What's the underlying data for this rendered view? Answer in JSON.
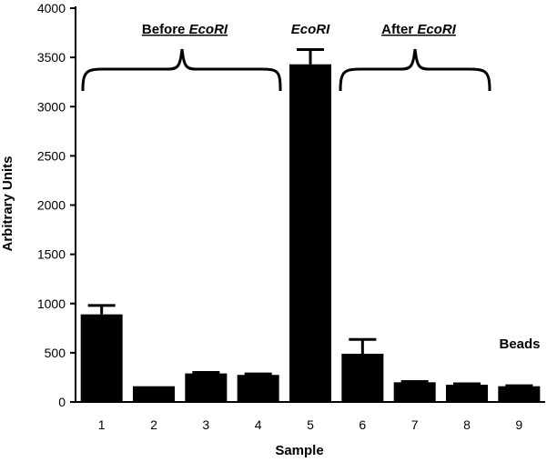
{
  "chart_data": {
    "type": "bar",
    "categories": [
      "1",
      "2",
      "3",
      "4",
      "5",
      "6",
      "7",
      "8",
      "9"
    ],
    "values": [
      890,
      160,
      290,
      275,
      3430,
      490,
      200,
      175,
      160
    ],
    "errors": [
      90,
      0,
      10,
      10,
      150,
      145,
      8,
      10,
      5
    ],
    "xlabel": "Sample",
    "ylabel": "Arbitrary Units",
    "ylim": [
      0,
      4000
    ],
    "yticks": [
      0,
      500,
      1000,
      1500,
      2000,
      2500,
      3000,
      3500,
      4000
    ],
    "bar_color": "#000000",
    "grid": false,
    "annotations": {
      "before": {
        "prefix": "Before ",
        "italic": "EcoRI"
      },
      "middle": "EcoRI",
      "after": {
        "prefix": "After ",
        "italic": "EcoRI"
      },
      "beads": "Beads"
    }
  }
}
